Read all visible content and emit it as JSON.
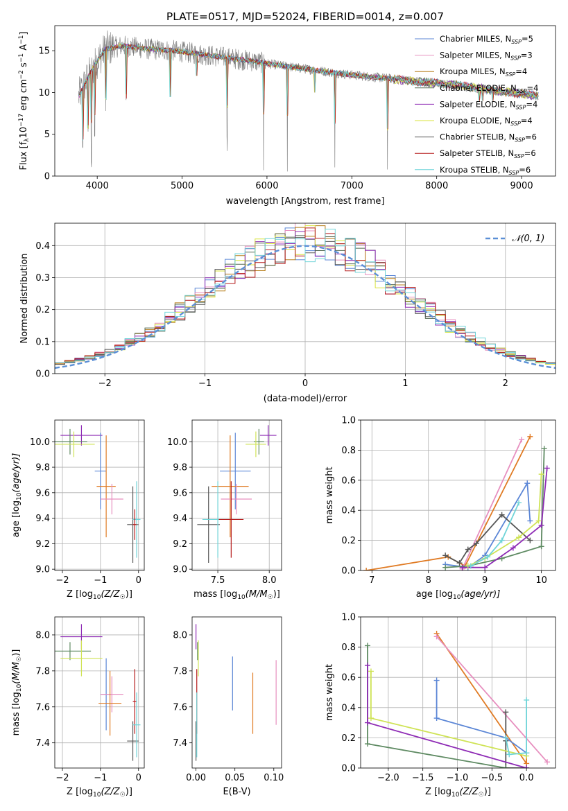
{
  "title": "PLATE=0517, MJD=52024, FIBERID=0014, z=0.007",
  "colors": {
    "chabrier_miles": "#5b86d6",
    "salpeter_miles": "#e78fbf",
    "kroupa_miles": "#b57b16",
    "chabrier_elodie": "#556b55",
    "salpeter_elodie": "#8e2bb5",
    "kroupa_elodie": "#d8e33a",
    "chabrier_stelib": "#555555",
    "salpeter_stelib": "#b51a1a",
    "kroupa_stelib": "#6fd4d8",
    "gaussian": "#5b8fd6",
    "orange": "#e07b24",
    "green": "#5e8a62",
    "pink": "#e78fbf",
    "blue": "#5b86d6",
    "purple": "#8e2bb5",
    "yellow": "#cfe355",
    "dark": "#555555",
    "cyan": "#6fd4d8"
  },
  "chart_data": [
    {
      "id": "spectrum",
      "type": "line",
      "xlabel": "wavelength [Angstrom, rest frame]",
      "ylabel_main": "Flux [f",
      "ylabel_sub": "λ",
      "ylabel_mid": "10",
      "ylabel_sup1": "−17",
      "ylabel_tail": " erg cm",
      "ylabel_sup2": "−2",
      "ylabel_s": " s",
      "ylabel_sup3": "−1",
      "ylabel_end": " A",
      "ylabel_sup4": "−1",
      "ylabel_close": "]",
      "xlim": [
        3500,
        9400
      ],
      "ylim": [
        0,
        18
      ],
      "xticks": [
        4000,
        5000,
        6000,
        7000,
        8000,
        9000
      ],
      "yticks": [
        0,
        5,
        10,
        15
      ],
      "grid": false,
      "legend_placement": "top-right",
      "continuum_nodes": [
        [
          3780,
          9.5
        ],
        [
          3900,
          12.0
        ],
        [
          4000,
          13.8
        ],
        [
          4100,
          15.2
        ],
        [
          4300,
          15.6
        ],
        [
          4600,
          15.2
        ],
        [
          4900,
          15.0
        ],
        [
          5200,
          14.6
        ],
        [
          5500,
          14.2
        ],
        [
          5800,
          13.8
        ],
        [
          6100,
          13.3
        ],
        [
          6400,
          12.9
        ],
        [
          6700,
          12.5
        ],
        [
          7000,
          12.1
        ],
        [
          7300,
          11.8
        ],
        [
          7600,
          11.5
        ],
        [
          7900,
          11.2
        ],
        [
          8200,
          10.9
        ],
        [
          8500,
          10.5
        ],
        [
          8800,
          10.1
        ],
        [
          9100,
          9.7
        ],
        [
          9200,
          9.6
        ]
      ],
      "deep_absorptions": [
        [
          3830,
          3
        ],
        [
          3890,
          5
        ],
        [
          3930,
          0
        ],
        [
          3970,
          4
        ],
        [
          4101,
          7
        ],
        [
          4340,
          7.5
        ],
        [
          4861,
          9.5
        ],
        [
          5170,
          12
        ],
        [
          5530,
          3
        ],
        [
          5960,
          0
        ],
        [
          6240,
          0
        ],
        [
          6563,
          10
        ],
        [
          6800,
          0
        ],
        [
          7420,
          0
        ],
        [
          8500,
          9
        ],
        [
          8540,
          9
        ],
        [
          8660,
          9
        ]
      ],
      "series": [
        {
          "name_main": "Chabrier MILES, N",
          "name_sub": "SSP",
          "name_tail": "=5",
          "colorkey": "chabrier_miles"
        },
        {
          "name_main": "Salpeter MILES, N",
          "name_sub": "SSP",
          "name_tail": "=3",
          "colorkey": "salpeter_miles"
        },
        {
          "name_main": "Kroupa MILES, N",
          "name_sub": "SSP",
          "name_tail": "=4",
          "colorkey": "kroupa_miles"
        },
        {
          "name_main": "Chabrier ELODIE, N",
          "name_sub": "SSP",
          "name_tail": "=4",
          "colorkey": "chabrier_elodie"
        },
        {
          "name_main": "Salpeter ELODIE, N",
          "name_sub": "SSP",
          "name_tail": "=4",
          "colorkey": "salpeter_elodie"
        },
        {
          "name_main": "Kroupa ELODIE, N",
          "name_sub": "SSP",
          "name_tail": "=4",
          "colorkey": "kroupa_elodie"
        },
        {
          "name_main": "Chabrier STELIB, N",
          "name_sub": "SSP",
          "name_tail": "=6",
          "colorkey": "chabrier_stelib"
        },
        {
          "name_main": "Salpeter STELIB, N",
          "name_sub": "SSP",
          "name_tail": "=6",
          "colorkey": "salpeter_stelib"
        },
        {
          "name_main": "Kroupa STELIB, N",
          "name_sub": "SSP",
          "name_tail": "=6",
          "colorkey": "kroupa_stelib"
        }
      ]
    },
    {
      "id": "residuals",
      "type": "histogram",
      "xlabel": "(data-model)/error",
      "ylabel": "Normed distribution",
      "xlim": [
        -2.5,
        2.5
      ],
      "ylim": [
        0,
        0.47
      ],
      "xticks": [
        -2,
        -1,
        0,
        1,
        2
      ],
      "xticklabels": [
        "−2",
        "−1",
        "0",
        "1",
        "2"
      ],
      "yticks": [
        0.0,
        0.1,
        0.2,
        0.3,
        0.4
      ],
      "yticklabels": [
        "0.0",
        "0.1",
        "0.2",
        "0.3",
        "0.4"
      ],
      "grid": true,
      "legend_placement": "top-right",
      "legend_label": "𝒩(0, 1)",
      "bin_width": 0.1,
      "bin_start": -2.5,
      "hist_colorkeys": [
        "chabrier_miles",
        "salpeter_miles",
        "kroupa_miles",
        "chabrier_elodie",
        "salpeter_elodie",
        "kroupa_elodie",
        "chabrier_stelib",
        "salpeter_stelib",
        "kroupa_stelib"
      ]
    },
    {
      "id": "age_vs_z",
      "type": "errorbar",
      "xlabel_main": "Z [log",
      "xlabel_sub": "10",
      "xlabel_tail": "(Z/Z",
      "xlabel_sub2": "☉",
      "xlabel_end": ")]",
      "ylabel_main": "age  [log",
      "ylabel_sub": "10",
      "ylabel_tail": "(age/yr)]",
      "xlim": [
        -2.2,
        0.15
      ],
      "ylim": [
        8.99,
        10.17
      ],
      "xticks": [
        -2,
        -1,
        0
      ],
      "xticklabels": [
        "−2",
        "−1",
        "0"
      ],
      "yticks": [
        9.0,
        9.2,
        9.4,
        9.6,
        9.8,
        10.0
      ],
      "yticklabels": [
        "9.0",
        "9.2",
        "9.4",
        "9.6",
        "9.8",
        "10.0"
      ],
      "grid": true,
      "points": [
        {
          "x": -1.5,
          "xerr": 0.55,
          "y": 10.05,
          "yerr": 0.08,
          "colorkey": "purple"
        },
        {
          "x": -1.8,
          "xerr": 0.45,
          "y": 10.0,
          "yerr": 0.1,
          "colorkey": "green"
        },
        {
          "x": -1.7,
          "xerr": 0.55,
          "y": 9.98,
          "yerr": 0.1,
          "colorkey": "yellow"
        },
        {
          "x": -1.0,
          "xerr": 0.15,
          "y": 9.77,
          "yerr": 0.3,
          "colorkey": "blue"
        },
        {
          "x": -0.85,
          "xerr": 0.25,
          "y": 9.65,
          "yerr": 0.4,
          "colorkey": "orange"
        },
        {
          "x": -0.7,
          "xerr": 0.3,
          "y": 9.55,
          "yerr": 0.12,
          "colorkey": "pink"
        },
        {
          "x": -0.15,
          "xerr": 0.15,
          "y": 9.35,
          "yerr": 0.3,
          "colorkey": "dark"
        },
        {
          "x": -0.05,
          "xerr": 0.1,
          "y": 9.39,
          "yerr": 0.3,
          "colorkey": "cyan"
        },
        {
          "x": -0.1,
          "xerr": 0.05,
          "y": 9.35,
          "yerr": 0.12,
          "colorkey": "salpeter_stelib"
        }
      ]
    },
    {
      "id": "age_vs_mass",
      "type": "errorbar",
      "xlabel_main": "mass [log",
      "xlabel_sub": "10",
      "xlabel_tail": "(M/M",
      "xlabel_sub2": "☉",
      "xlabel_end": ")]",
      "xlim": [
        7.25,
        8.12
      ],
      "ylim": [
        8.99,
        10.17
      ],
      "xticks": [
        7.5,
        8.0
      ],
      "xticklabels": [
        "7.5",
        "8.0"
      ],
      "yticks": [
        9.0,
        9.2,
        9.4,
        9.6,
        9.8,
        10.0
      ],
      "yticklabels": [
        "9.0",
        "9.2",
        "9.4",
        "9.6",
        "9.8",
        "10.0"
      ],
      "grid": true,
      "points": [
        {
          "x": 7.99,
          "xerr": 0.08,
          "y": 10.05,
          "yerr": 0.08,
          "colorkey": "purple"
        },
        {
          "x": 7.9,
          "xerr": 0.05,
          "y": 10.0,
          "yerr": 0.1,
          "colorkey": "green"
        },
        {
          "x": 7.87,
          "xerr": 0.1,
          "y": 9.98,
          "yerr": 0.1,
          "colorkey": "yellow"
        },
        {
          "x": 7.67,
          "xerr": 0.15,
          "y": 9.77,
          "yerr": 0.3,
          "colorkey": "blue"
        },
        {
          "x": 7.62,
          "xerr": 0.18,
          "y": 9.65,
          "yerr": 0.4,
          "colorkey": "orange"
        },
        {
          "x": 7.68,
          "xerr": 0.15,
          "y": 9.55,
          "yerr": 0.12,
          "colorkey": "pink"
        },
        {
          "x": 7.41,
          "xerr": 0.11,
          "y": 9.35,
          "yerr": 0.3,
          "colorkey": "dark"
        },
        {
          "x": 7.5,
          "xerr": 0.15,
          "y": 9.39,
          "yerr": 0.3,
          "colorkey": "cyan"
        },
        {
          "x": 7.63,
          "xerr": 0.12,
          "y": 9.39,
          "yerr": 0.3,
          "colorkey": "salpeter_stelib"
        }
      ]
    },
    {
      "id": "weight_vs_age",
      "type": "line",
      "xlabel_main": "age  [log",
      "xlabel_sub": "10",
      "xlabel_tail": "(age/yr)]",
      "ylabel": "mass weight",
      "xlim": [
        6.8,
        10.25
      ],
      "ylim": [
        0,
        1.0
      ],
      "xticks": [
        7,
        8,
        9,
        10
      ],
      "xticklabels": [
        "7",
        "8",
        "9",
        "10"
      ],
      "yticks": [
        0.0,
        0.2,
        0.4,
        0.6,
        0.8,
        1.0
      ],
      "yticklabels": [
        "0.0",
        "0.2",
        "0.4",
        "0.6",
        "0.8",
        "1.0"
      ],
      "grid": true,
      "series": [
        {
          "colorkey": "orange",
          "x": [
            6.9,
            8.35,
            8.65,
            9.8
          ],
          "y": [
            0.0,
            0.09,
            0.03,
            0.89
          ]
        },
        {
          "colorkey": "pink",
          "x": [
            8.6,
            9.65
          ],
          "y": [
            0.01,
            0.87
          ]
        },
        {
          "colorkey": "blue",
          "x": [
            8.3,
            8.7,
            9.0,
            9.75,
            9.8
          ],
          "y": [
            0.04,
            0.02,
            0.1,
            0.58,
            0.33
          ]
        },
        {
          "colorkey": "dark",
          "x": [
            8.3,
            8.55,
            8.7,
            8.85,
            9.3,
            9.8
          ],
          "y": [
            0.1,
            0.05,
            0.14,
            0.18,
            0.37,
            0.2
          ]
        },
        {
          "colorkey": "green",
          "x": [
            8.3,
            8.7,
            9.3,
            10.0,
            10.05
          ],
          "y": [
            0.02,
            0.03,
            0.08,
            0.16,
            0.81
          ]
        },
        {
          "colorkey": "purple",
          "x": [
            8.6,
            9.0,
            9.5,
            10.0,
            10.1
          ],
          "y": [
            0.02,
            0.02,
            0.15,
            0.3,
            0.68
          ]
        },
        {
          "colorkey": "yellow",
          "x": [
            8.7,
            9.0,
            9.6,
            9.95,
            10.0
          ],
          "y": [
            0.03,
            0.08,
            0.22,
            0.33,
            0.64
          ]
        },
        {
          "colorkey": "cyan",
          "x": [
            8.75,
            9.05,
            9.3,
            9.6
          ],
          "y": [
            0.03,
            0.09,
            0.2,
            0.45
          ]
        }
      ]
    },
    {
      "id": "mass_vs_z",
      "type": "errorbar",
      "xlabel_main": "Z [log",
      "xlabel_sub": "10",
      "xlabel_tail": "(Z/Z",
      "xlabel_sub2": "☉",
      "xlabel_end": ")]",
      "ylabel_main": "mass [log",
      "ylabel_sub": "10",
      "ylabel_tail": "(M/M",
      "ylabel_sub2": "☉",
      "ylabel_end": ")]",
      "xlim": [
        -2.2,
        0.15
      ],
      "ylim": [
        7.26,
        8.1
      ],
      "xticks": [
        -2,
        -1,
        0
      ],
      "xticklabels": [
        "−2",
        "−1",
        "0"
      ],
      "yticks": [
        7.4,
        7.6,
        7.8,
        8.0
      ],
      "yticklabels": [
        "7.4",
        "7.6",
        "7.8",
        "8.0"
      ],
      "grid": true,
      "points": [
        {
          "x": -1.5,
          "xerr": 0.55,
          "y": 7.99,
          "yerr": 0.07,
          "colorkey": "purple"
        },
        {
          "x": -1.8,
          "xerr": 0.55,
          "y": 7.91,
          "yerr": 0.05,
          "colorkey": "green"
        },
        {
          "x": -1.5,
          "xerr": 0.55,
          "y": 7.87,
          "yerr": 0.1,
          "colorkey": "yellow"
        },
        {
          "x": -0.85,
          "xerr": 0.15,
          "y": 7.67,
          "yerr": 0.2,
          "colorkey": "blue"
        },
        {
          "x": -0.7,
          "xerr": 0.3,
          "y": 7.67,
          "yerr": 0.1,
          "colorkey": "pink"
        },
        {
          "x": -0.75,
          "xerr": 0.3,
          "y": 7.62,
          "yerr": 0.18,
          "colorkey": "orange"
        },
        {
          "x": -0.1,
          "xerr": 0.05,
          "y": 7.63,
          "yerr": 0.18,
          "colorkey": "salpeter_stelib"
        },
        {
          "x": -0.15,
          "xerr": 0.15,
          "y": 7.41,
          "yerr": 0.11,
          "colorkey": "dark"
        },
        {
          "x": -0.05,
          "xerr": 0.1,
          "y": 7.5,
          "yerr": 0.18,
          "colorkey": "cyan"
        }
      ]
    },
    {
      "id": "mass_vs_ebv",
      "type": "errorbar",
      "xlabel": "E(B-V)",
      "xlim": [
        -0.005,
        0.11
      ],
      "ylim": [
        7.26,
        8.1
      ],
      "xticks": [
        0.0,
        0.05,
        0.1
      ],
      "xticklabels": [
        "0.00",
        "0.05",
        "0.10"
      ],
      "yticks": [
        7.4,
        7.6,
        7.8,
        8.0
      ],
      "yticklabels": [
        "7.4",
        "7.6",
        "7.8",
        "8.0"
      ],
      "grid": false,
      "points": [
        {
          "x": 0.0,
          "xerr": 0,
          "y": 7.99,
          "yerr": 0.07,
          "colorkey": "purple"
        },
        {
          "x": 0.002,
          "xerr": 0,
          "y": 7.91,
          "yerr": 0.05,
          "colorkey": "green"
        },
        {
          "x": 0.003,
          "xerr": 0,
          "y": 7.87,
          "yerr": 0.1,
          "colorkey": "yellow"
        },
        {
          "x": 0.047,
          "xerr": 0,
          "y": 7.73,
          "yerr": 0.15,
          "colorkey": "blue"
        },
        {
          "x": 0.073,
          "xerr": 0,
          "y": 7.62,
          "yerr": 0.17,
          "colorkey": "orange"
        },
        {
          "x": 0.103,
          "xerr": 0,
          "y": 7.68,
          "yerr": 0.18,
          "colorkey": "pink"
        },
        {
          "x": 0.001,
          "xerr": 0,
          "y": 7.63,
          "yerr": 0.18,
          "colorkey": "salpeter_stelib"
        },
        {
          "x": 0.0,
          "xerr": 0,
          "y": 7.41,
          "yerr": 0.11,
          "colorkey": "dark"
        },
        {
          "x": 0.001,
          "xerr": 0,
          "y": 7.5,
          "yerr": 0.18,
          "colorkey": "cyan"
        }
      ]
    },
    {
      "id": "weight_vs_z",
      "type": "line",
      "xlabel_main": "Z [log",
      "xlabel_sub": "10",
      "xlabel_tail": "(Z/Z",
      "xlabel_sub2": "☉",
      "xlabel_end": ")]",
      "ylabel": "mass weight",
      "xlim": [
        -2.4,
        0.42
      ],
      "ylim": [
        0,
        1.0
      ],
      "xticks": [
        -2.0,
        -1.5,
        -1.0,
        -0.5,
        0.0
      ],
      "xticklabels": [
        "−2.0",
        "−1.5",
        "−1.0",
        "−0.5",
        "0.0"
      ],
      "yticks": [
        0.0,
        0.2,
        0.4,
        0.6,
        0.8,
        1.0
      ],
      "yticklabels": [
        "0.0",
        "0.2",
        "0.4",
        "0.6",
        "0.8",
        "1.0"
      ],
      "grid": true,
      "series": [
        {
          "colorkey": "orange",
          "x": [
            -1.3,
            0.0,
            0.0
          ],
          "y": [
            0.89,
            0.03,
            0.1
          ]
        },
        {
          "colorkey": "pink",
          "x": [
            -1.3,
            0.3
          ],
          "y": [
            0.87,
            0.04
          ]
        },
        {
          "colorkey": "blue",
          "x": [
            -1.3,
            -1.3,
            -0.3,
            0.0
          ],
          "y": [
            0.58,
            0.33,
            0.2,
            0.1
          ]
        },
        {
          "colorkey": "dark",
          "x": [
            -0.3,
            -0.3,
            -0.3,
            0.0
          ],
          "y": [
            0.37,
            0.18,
            0.0,
            0.0
          ]
        },
        {
          "colorkey": "green",
          "x": [
            -2.3,
            -2.3,
            -0.3
          ],
          "y": [
            0.81,
            0.16,
            0.0
          ]
        },
        {
          "colorkey": "purple",
          "x": [
            -2.3,
            -2.3,
            0.0
          ],
          "y": [
            0.68,
            0.3,
            0.0
          ]
        },
        {
          "colorkey": "yellow",
          "x": [
            -2.25,
            -2.25,
            0.0
          ],
          "y": [
            0.64,
            0.33,
            0.08
          ]
        },
        {
          "colorkey": "cyan",
          "x": [
            0.0,
            0.0,
            -0.25,
            -0.3
          ],
          "y": [
            0.45,
            0.1,
            0.09,
            0.2
          ]
        }
      ]
    }
  ]
}
